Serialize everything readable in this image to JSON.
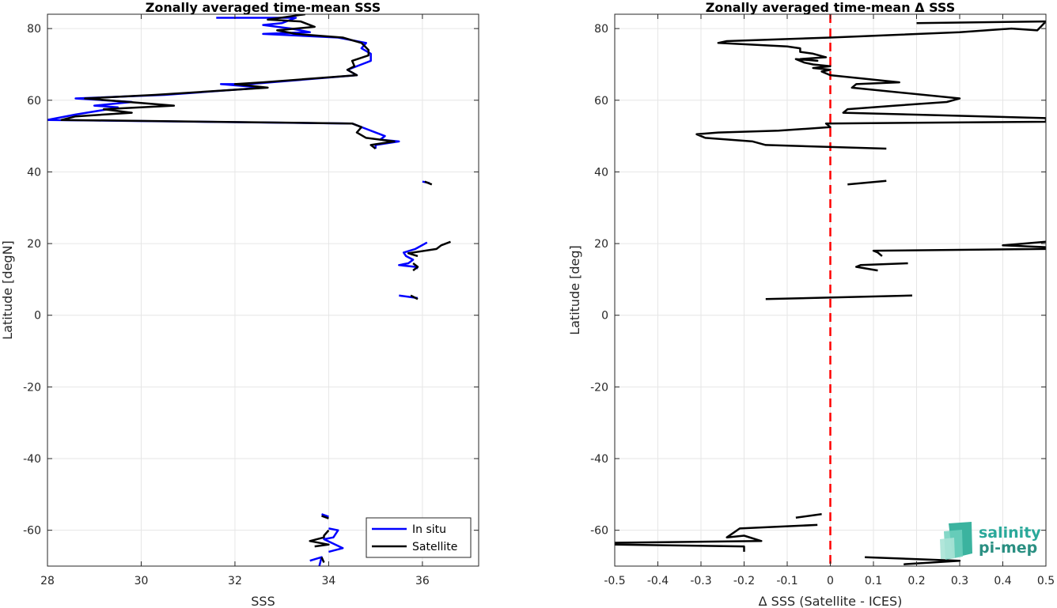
{
  "chart_data": [
    {
      "type": "line",
      "title": "Zonally averaged time-mean SSS",
      "xlabel": "SSS",
      "ylabel": "Latitude [degN]",
      "xlim": [
        28,
        37.2
      ],
      "ylim": [
        -70,
        84
      ],
      "xticks": [
        "28",
        "30",
        "32",
        "34",
        "36"
      ],
      "yticks": [
        "80",
        "60",
        "40",
        "20",
        "0",
        "-20",
        "-40",
        "-60"
      ],
      "grid": true,
      "legend": {
        "placement": "bottom-right",
        "entries": [
          "In situ",
          "Satellite"
        ]
      },
      "series": [
        {
          "name": "In situ",
          "color": "#0000ff",
          "segments": [
            [
              [
                31.6,
                83
              ],
              [
                33.3,
                83
              ],
              [
                33.0,
                81.5
              ],
              [
                32.6,
                81
              ],
              [
                33.2,
                80
              ],
              [
                33.6,
                79
              ],
              [
                32.6,
                78.5
              ],
              [
                34.2,
                77.5
              ],
              [
                34.8,
                76
              ],
              [
                34.7,
                74.5
              ],
              [
                34.9,
                73
              ],
              [
                34.9,
                71
              ],
              [
                34.7,
                70
              ],
              [
                34.4,
                68.5
              ],
              [
                34.6,
                67
              ],
              [
                32.3,
                64.5
              ],
              [
                31.7,
                64.5
              ],
              [
                32.6,
                63.5
              ],
              [
                30.5,
                61.5
              ],
              [
                28.6,
                60.5
              ],
              [
                29.8,
                59.5
              ],
              [
                29.0,
                58.5
              ],
              [
                29.5,
                58
              ],
              [
                29.3,
                57.5
              ],
              [
                28.6,
                56
              ],
              [
                28.0,
                54.5
              ],
              [
                34.5,
                53.5
              ],
              [
                34.8,
                52
              ],
              [
                35.0,
                51
              ],
              [
                35.2,
                50
              ],
              [
                35.1,
                49
              ],
              [
                35.5,
                48.5
              ],
              [
                35.0,
                47.5
              ],
              [
                35.0,
                46.5
              ]
            ],
            [
              [
                36.0,
                37.3
              ],
              [
                36.15,
                36.9
              ]
            ],
            [
              [
                36.1,
                20.3
              ],
              [
                35.85,
                18.5
              ],
              [
                35.6,
                17.5
              ],
              [
                35.65,
                16.5
              ],
              [
                35.8,
                15.5
              ],
              [
                35.7,
                14.5
              ],
              [
                35.5,
                14
              ],
              [
                35.85,
                13.5
              ],
              [
                35.9,
                13
              ]
            ],
            [
              [
                35.5,
                5.5
              ],
              [
                35.9,
                4.8
              ]
            ],
            [
              [
                33.85,
                -55.5
              ],
              [
                34.0,
                -56.2
              ]
            ],
            [
              [
                34.0,
                -59.5
              ],
              [
                34.2,
                -60
              ],
              [
                34.1,
                -62
              ],
              [
                33.9,
                -62.5
              ],
              [
                34.3,
                -65
              ],
              [
                34.0,
                -66
              ]
            ],
            [
              [
                33.6,
                -68.5
              ],
              [
                33.85,
                -67.5
              ],
              [
                33.8,
                -70
              ]
            ]
          ]
        },
        {
          "name": "Satellite",
          "color": "#000000",
          "segments": [
            [
              [
                33.5,
                84
              ],
              [
                32.7,
                82.5
              ],
              [
                33.4,
                82
              ],
              [
                33.7,
                80.5
              ],
              [
                32.9,
                79.5
              ],
              [
                33.3,
                78.5
              ],
              [
                34.3,
                77.5
              ],
              [
                34.7,
                76
              ],
              [
                34.85,
                74
              ],
              [
                34.85,
                72.5
              ],
              [
                34.5,
                71
              ],
              [
                34.55,
                69.5
              ],
              [
                34.4,
                68.5
              ],
              [
                34.6,
                67
              ],
              [
                32.6,
                65
              ],
              [
                32.0,
                64.5
              ],
              [
                32.7,
                63.5
              ],
              [
                30.3,
                61.5
              ],
              [
                28.8,
                60.5
              ],
              [
                30.7,
                58.5
              ],
              [
                29.2,
                57.5
              ],
              [
                29.8,
                56.5
              ],
              [
                28.6,
                55.5
              ],
              [
                28.3,
                54.5
              ],
              [
                34.5,
                53.5
              ],
              [
                34.7,
                52.5
              ],
              [
                34.6,
                51
              ],
              [
                34.8,
                49.5
              ],
              [
                35.4,
                48.5
              ],
              [
                34.9,
                47.5
              ],
              [
                35.0,
                46.5
              ]
            ],
            [
              [
                36.05,
                37.3
              ],
              [
                36.2,
                36.5
              ]
            ],
            [
              [
                36.6,
                20.5
              ],
              [
                36.4,
                19.5
              ],
              [
                36.3,
                18.5
              ],
              [
                35.7,
                17.3
              ],
              [
                35.9,
                16.5
              ]
            ],
            [
              [
                35.8,
                14.5
              ],
              [
                35.9,
                13.5
              ],
              [
                35.8,
                12.5
              ]
            ],
            [
              [
                35.75,
                5.5
              ],
              [
                35.9,
                4.5
              ]
            ],
            [
              [
                33.85,
                -56
              ],
              [
                34.0,
                -56.7
              ]
            ],
            [
              [
                34.0,
                -60
              ],
              [
                33.9,
                -61.5
              ],
              [
                33.9,
                -62
              ],
              [
                33.6,
                -63
              ],
              [
                34.0,
                -64
              ],
              [
                33.7,
                -64.5
              ]
            ],
            [
              [
                33.85,
                -67.5
              ],
              [
                33.9,
                -69
              ]
            ]
          ]
        }
      ]
    },
    {
      "type": "line",
      "title": "Zonally averaged time-mean Δ SSS",
      "xlabel": "Δ SSS (Satellite - ICES)",
      "ylabel": "Latitude [deg]",
      "xlim": [
        -0.5,
        0.5
      ],
      "ylim": [
        -70,
        84
      ],
      "xticks": [
        "-0.5",
        "-0.4",
        "-0.3",
        "-0.2",
        "-0.1",
        "0",
        "0.1",
        "0.2",
        "0.3",
        "0.4",
        "0.5"
      ],
      "yticks": [
        "80",
        "60",
        "40",
        "20",
        "0",
        "-20",
        "-40",
        "-60"
      ],
      "grid": true,
      "reference_line": {
        "x": 0,
        "color": "#ff0000",
        "style": "dashed"
      },
      "series": [
        {
          "color": "#000000",
          "segments": [
            [
              [
                0.2,
                81.5
              ],
              [
                0.5,
                82
              ],
              [
                0.48,
                79.5
              ],
              [
                0.42,
                80
              ],
              [
                0.3,
                79
              ],
              [
                0.0,
                77.5
              ],
              [
                -0.24,
                76.5
              ],
              [
                -0.26,
                76
              ],
              [
                -0.1,
                75
              ],
              [
                -0.07,
                74.5
              ],
              [
                -0.07,
                73.5
              ],
              [
                -0.04,
                73
              ],
              [
                -0.01,
                72
              ],
              [
                -0.07,
                71.5
              ],
              [
                -0.03,
                71
              ],
              [
                -0.08,
                71.5
              ],
              [
                -0.06,
                70.5
              ],
              [
                -0.04,
                70
              ],
              [
                0.0,
                69.5
              ],
              [
                -0.04,
                69
              ],
              [
                0.0,
                68.5
              ],
              [
                -0.02,
                68
              ],
              [
                0.0,
                67
              ],
              [
                0.16,
                65
              ],
              [
                0.06,
                64.5
              ],
              [
                0.05,
                63.5
              ],
              [
                0.3,
                60.5
              ],
              [
                0.27,
                59.5
              ],
              [
                0.15,
                58.5
              ],
              [
                0.04,
                57.5
              ],
              [
                0.03,
                56.5
              ],
              [
                0.5,
                55
              ],
              [
                0.5,
                54
              ],
              [
                -0.01,
                53.5
              ],
              [
                0.0,
                52.5
              ],
              [
                -0.12,
                51.5
              ],
              [
                -0.26,
                51
              ],
              [
                -0.31,
                50.5
              ],
              [
                -0.29,
                49.5
              ],
              [
                -0.18,
                48.5
              ],
              [
                -0.15,
                47.5
              ],
              [
                0.13,
                46.5
              ]
            ],
            [
              [
                0.04,
                36.5
              ],
              [
                0.13,
                37.5
              ]
            ],
            [
              [
                0.5,
                20.5
              ],
              [
                0.4,
                19.5
              ],
              [
                0.5,
                19
              ],
              [
                0.5,
                18.5
              ],
              [
                0.1,
                18
              ],
              [
                0.11,
                17.5
              ],
              [
                0.12,
                16.5
              ]
            ],
            [
              [
                0.18,
                14.5
              ],
              [
                0.07,
                14
              ],
              [
                0.06,
                13.5
              ],
              [
                0.11,
                12.5
              ]
            ],
            [
              [
                -0.15,
                4.5
              ],
              [
                0.19,
                5.5
              ]
            ],
            [
              [
                -0.08,
                -56.5
              ],
              [
                -0.02,
                -55.5
              ]
            ],
            [
              [
                -0.03,
                -58.5
              ],
              [
                -0.21,
                -59.5
              ],
              [
                -0.24,
                -62
              ],
              [
                -0.2,
                -61.5
              ],
              [
                -0.16,
                -63
              ],
              [
                -0.5,
                -63.5
              ],
              [
                -0.5,
                -64
              ],
              [
                -0.2,
                -64.5
              ],
              [
                -0.2,
                -66
              ]
            ],
            [
              [
                0.08,
                -67.5
              ],
              [
                0.3,
                -68.5
              ],
              [
                0.17,
                -69.5
              ]
            ]
          ]
        }
      ]
    }
  ],
  "logo": {
    "line1": "salinity",
    "line2": "pi-mep"
  }
}
